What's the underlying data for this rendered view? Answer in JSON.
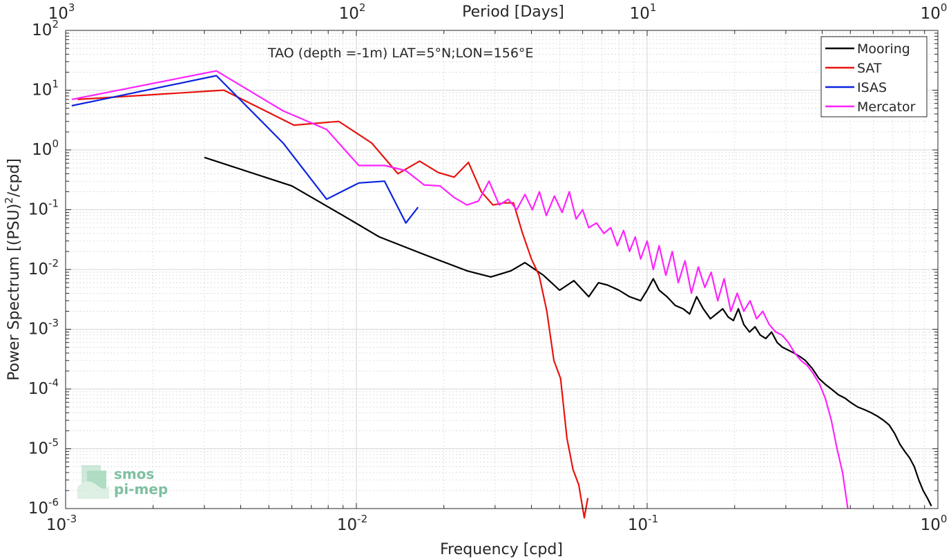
{
  "chart_data": {
    "type": "line",
    "title": "TAO (depth =-1m) LAT=5°N;LON=156°E",
    "xlabel": "Frequency [cpd]",
    "ylabel_main": "Power Spectrum [(PSU)",
    "ylabel_sup": "2",
    "ylabel_tail": "/cpd]",
    "top_xlabel": "Period [Days]",
    "xscale": "log",
    "yscale": "log",
    "xlim": [
      0.001,
      1
    ],
    "ylim": [
      1e-06,
      100
    ],
    "grid": true,
    "legend_placement": "top-right",
    "x_ticks": [
      {
        "base": "10",
        "exp": "-3",
        "value": 0.001
      },
      {
        "base": "10",
        "exp": "-2",
        "value": 0.01
      },
      {
        "base": "10",
        "exp": "-1",
        "value": 0.1
      },
      {
        "base": "10",
        "exp": "0",
        "value": 1
      }
    ],
    "y_ticks": [
      {
        "base": "10",
        "exp": "-6",
        "value": 1e-06
      },
      {
        "base": "10",
        "exp": "-5",
        "value": 1e-05
      },
      {
        "base": "10",
        "exp": "-4",
        "value": 0.0001
      },
      {
        "base": "10",
        "exp": "-3",
        "value": 0.001
      },
      {
        "base": "10",
        "exp": "-2",
        "value": 0.01
      },
      {
        "base": "10",
        "exp": "-1",
        "value": 0.1
      },
      {
        "base": "10",
        "exp": "0",
        "value": 1
      },
      {
        "base": "10",
        "exp": "1",
        "value": 10
      },
      {
        "base": "10",
        "exp": "2",
        "value": 100
      }
    ],
    "top_ticks": [
      {
        "base": "10",
        "exp": "3",
        "period": 1000
      },
      {
        "base": "10",
        "exp": "2",
        "period": 100
      },
      {
        "base": "10",
        "exp": "1",
        "period": 10
      },
      {
        "base": "10",
        "exp": "0",
        "period": 1
      }
    ],
    "series": [
      {
        "name": "Mooring",
        "color": "#000000",
        "x": [
          0.003,
          0.006,
          0.009,
          0.012,
          0.017,
          0.024,
          0.029,
          0.034,
          0.038,
          0.044,
          0.05,
          0.056,
          0.063,
          0.068,
          0.073,
          0.08,
          0.087,
          0.095,
          0.1,
          0.105,
          0.11,
          0.117,
          0.125,
          0.133,
          0.14,
          0.148,
          0.156,
          0.165,
          0.173,
          0.182,
          0.19,
          0.198,
          0.206,
          0.215,
          0.225,
          0.235,
          0.245,
          0.256,
          0.268,
          0.28,
          0.292,
          0.305,
          0.32,
          0.335,
          0.35,
          0.37,
          0.39,
          0.41,
          0.43,
          0.455,
          0.48,
          0.5,
          0.53,
          0.56,
          0.59,
          0.62,
          0.65,
          0.68,
          0.71,
          0.74,
          0.77,
          0.8,
          0.83,
          0.86,
          0.89,
          0.92,
          0.95
        ],
        "y": [
          0.75,
          0.25,
          0.08,
          0.035,
          0.018,
          0.0095,
          0.0075,
          0.0095,
          0.013,
          0.008,
          0.0045,
          0.0065,
          0.0035,
          0.006,
          0.0055,
          0.0045,
          0.0035,
          0.003,
          0.0045,
          0.007,
          0.0045,
          0.0035,
          0.0025,
          0.0022,
          0.0018,
          0.0035,
          0.0022,
          0.0015,
          0.0018,
          0.0022,
          0.0016,
          0.0014,
          0.0022,
          0.0012,
          0.0009,
          0.0011,
          0.0008,
          0.0007,
          0.0009,
          0.0006,
          0.0005,
          0.00045,
          0.0004,
          0.00035,
          0.0003,
          0.00022,
          0.00015,
          0.00012,
          0.0001,
          8e-05,
          7e-05,
          6e-05,
          5e-05,
          4.5e-05,
          4e-05,
          3.5e-05,
          3e-05,
          2.5e-05,
          1.8e-05,
          1.2e-05,
          9e-06,
          7e-06,
          5e-06,
          3e-06,
          2e-06,
          1.5e-06,
          1.1e-06
        ]
      },
      {
        "name": "SAT",
        "color": "#e8130d",
        "x": [
          0.0011,
          0.0035,
          0.0061,
          0.0087,
          0.0113,
          0.0139,
          0.0165,
          0.0191,
          0.0217,
          0.0243,
          0.0269,
          0.0295,
          0.0321,
          0.0347,
          0.0373,
          0.04,
          0.0425,
          0.0452,
          0.0478,
          0.0504,
          0.053,
          0.0556,
          0.0582,
          0.0608,
          0.0625
        ],
        "y": [
          7.0,
          10.0,
          2.6,
          3.0,
          1.3,
          0.4,
          0.65,
          0.42,
          0.35,
          0.62,
          0.2,
          0.12,
          0.13,
          0.13,
          0.04,
          0.015,
          0.008,
          0.002,
          0.0003,
          0.00015,
          1.5e-05,
          4.5e-06,
          2.5e-06,
          7e-07,
          1.5e-06
        ]
      },
      {
        "name": "ISAS",
        "color": "#0a22e0",
        "x": [
          0.00105,
          0.0033,
          0.0056,
          0.0079,
          0.0102,
          0.0125,
          0.0148,
          0.0163
        ],
        "y": [
          5.5,
          17.5,
          1.3,
          0.15,
          0.28,
          0.3,
          0.06,
          0.11
        ]
      },
      {
        "name": "Mercator",
        "color": "#ff22ff",
        "x": [
          0.00105,
          0.0033,
          0.0056,
          0.0079,
          0.0102,
          0.0125,
          0.0148,
          0.0171,
          0.0194,
          0.0217,
          0.024,
          0.0263,
          0.0286,
          0.031,
          0.0333,
          0.0356,
          0.038,
          0.0403,
          0.0426,
          0.045,
          0.048,
          0.051,
          0.054,
          0.057,
          0.06,
          0.063,
          0.067,
          0.071,
          0.075,
          0.079,
          0.083,
          0.087,
          0.091,
          0.095,
          0.1,
          0.105,
          0.11,
          0.116,
          0.122,
          0.128,
          0.135,
          0.142,
          0.15,
          0.158,
          0.166,
          0.175,
          0.184,
          0.194,
          0.204,
          0.215,
          0.226,
          0.238,
          0.25,
          0.263,
          0.277,
          0.291,
          0.306,
          0.322,
          0.338,
          0.355,
          0.373,
          0.392,
          0.41,
          0.43,
          0.45,
          0.47,
          0.49
        ],
        "y": [
          7.0,
          21.0,
          4.5,
          2.2,
          0.55,
          0.55,
          0.45,
          0.26,
          0.25,
          0.16,
          0.12,
          0.14,
          0.3,
          0.12,
          0.15,
          0.1,
          0.18,
          0.1,
          0.2,
          0.08,
          0.17,
          0.09,
          0.2,
          0.07,
          0.1,
          0.05,
          0.06,
          0.04,
          0.05,
          0.025,
          0.045,
          0.02,
          0.035,
          0.015,
          0.03,
          0.01,
          0.025,
          0.008,
          0.02,
          0.006,
          0.014,
          0.004,
          0.011,
          0.005,
          0.009,
          0.003,
          0.007,
          0.002,
          0.004,
          0.002,
          0.003,
          0.0015,
          0.002,
          0.0012,
          0.0009,
          0.0008,
          0.0006,
          0.0004,
          0.0003,
          0.00025,
          0.00018,
          0.00012,
          7e-05,
          3e-05,
          1e-05,
          4e-06,
          1e-06
        ]
      }
    ]
  },
  "logo": {
    "line1": "smos",
    "line2": "pi-mep"
  },
  "colors": {
    "axis": "#262626",
    "grid": "#d6d6d6",
    "logo": "#7fc0a0"
  }
}
